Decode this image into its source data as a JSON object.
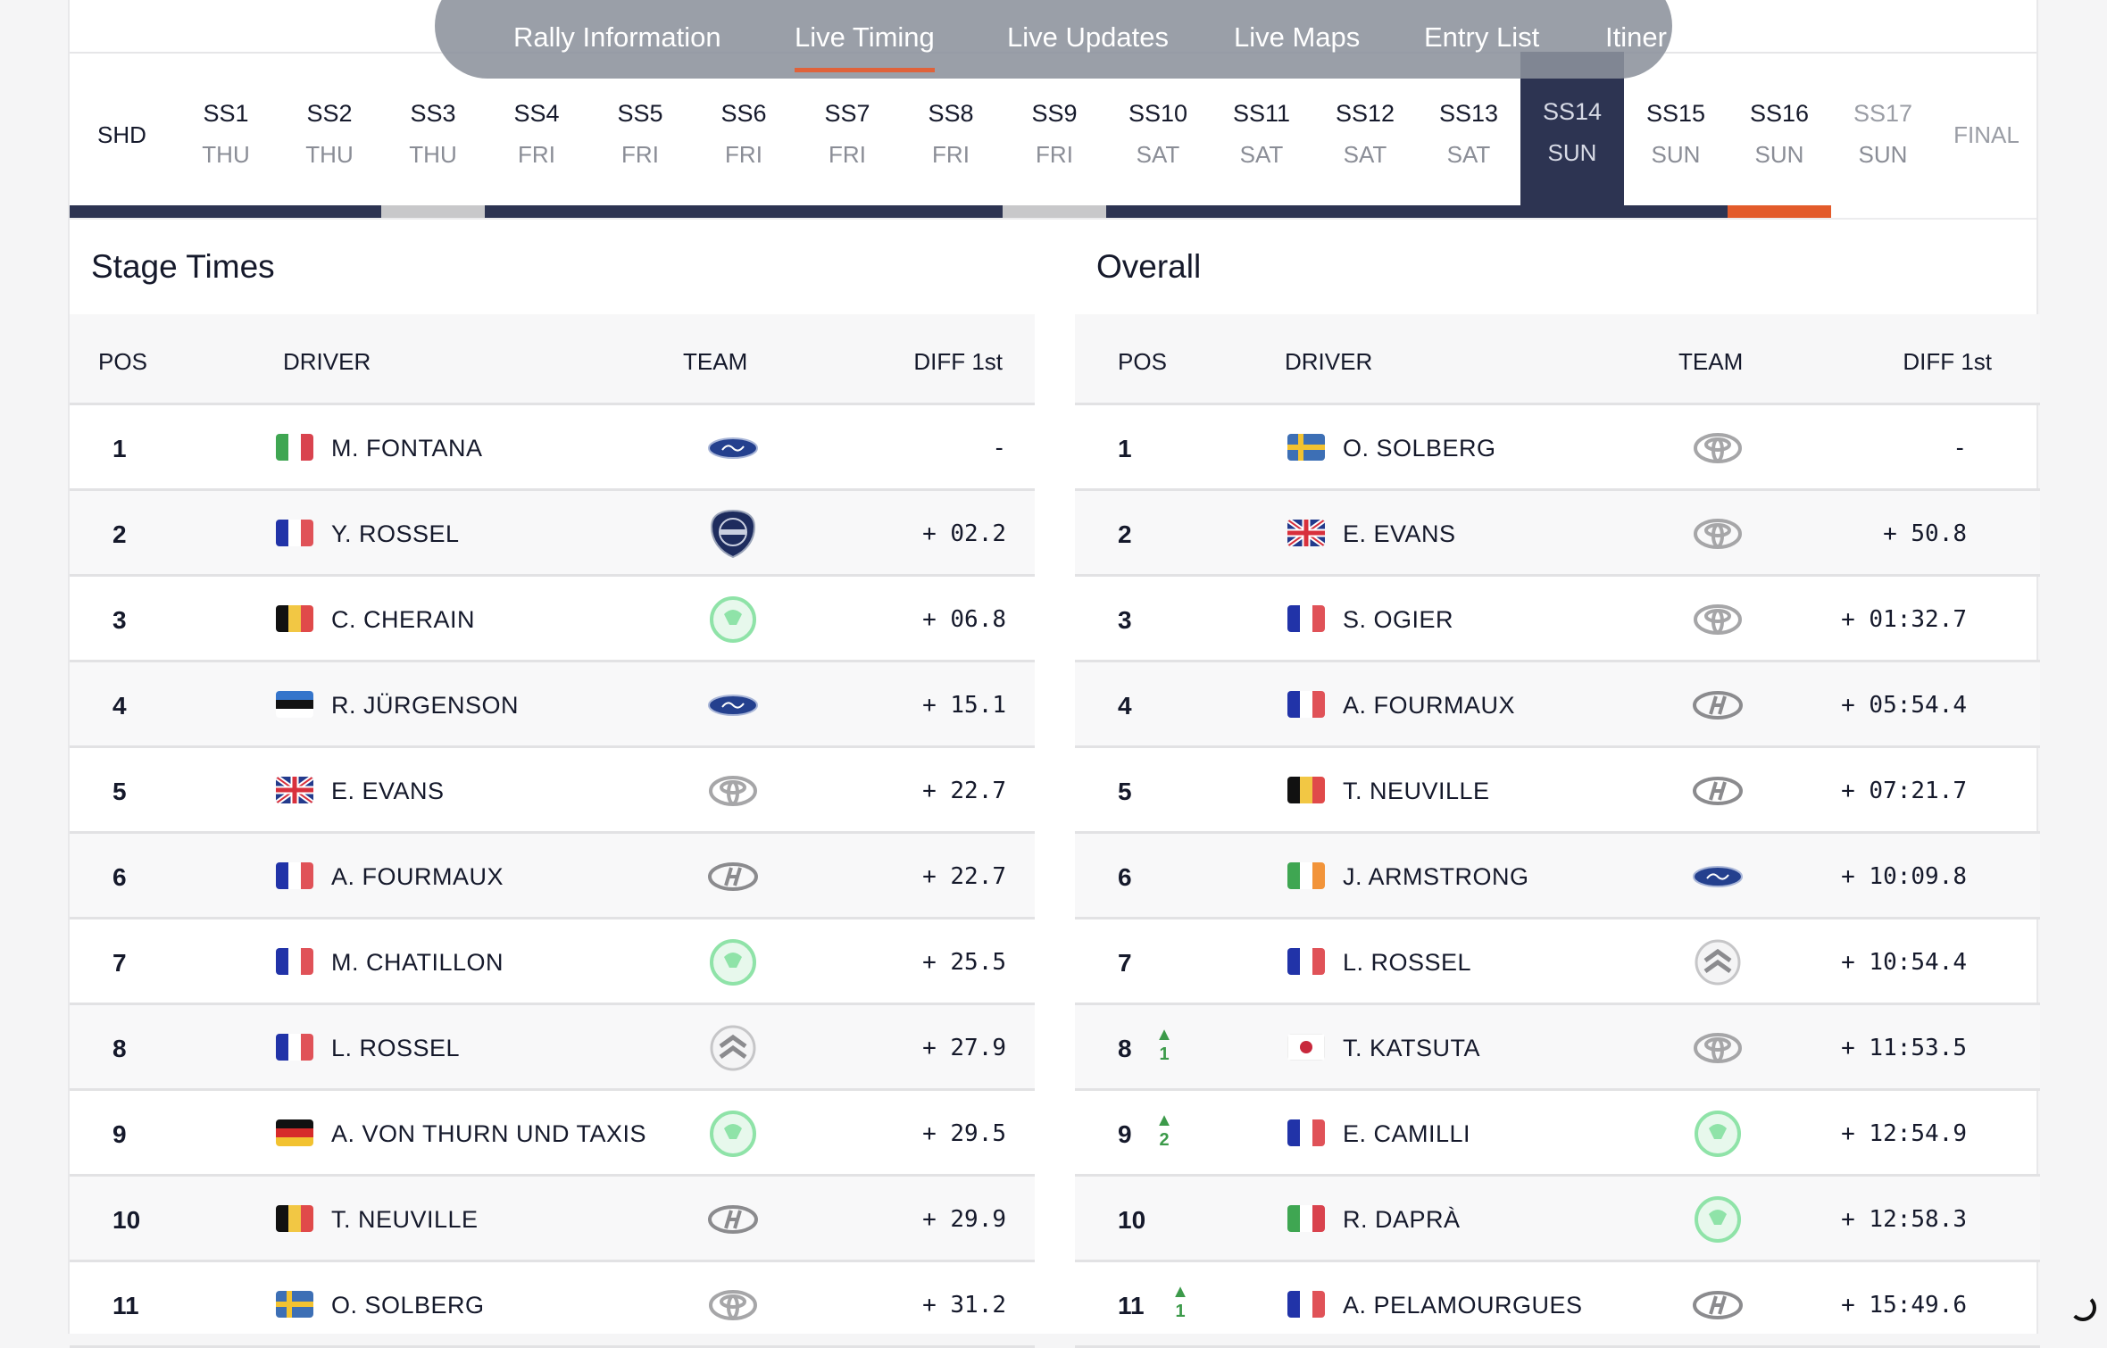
{
  "nav": {
    "items": [
      {
        "label": "Rally Information",
        "active": false
      },
      {
        "label": "Live Timing",
        "active": true
      },
      {
        "label": "Live Updates",
        "active": false
      },
      {
        "label": "Live Maps",
        "active": false
      },
      {
        "label": "Entry List",
        "active": false
      },
      {
        "label": "Itiner",
        "active": false
      }
    ]
  },
  "stages": [
    {
      "label": "SHD",
      "day": "",
      "status": "done"
    },
    {
      "label": "SS1",
      "day": "THU",
      "status": "done"
    },
    {
      "label": "SS2",
      "day": "THU",
      "status": "done"
    },
    {
      "label": "SS3",
      "day": "THU",
      "status": "cancelled"
    },
    {
      "label": "SS4",
      "day": "FRI",
      "status": "done"
    },
    {
      "label": "SS5",
      "day": "FRI",
      "status": "done"
    },
    {
      "label": "SS6",
      "day": "FRI",
      "status": "done"
    },
    {
      "label": "SS7",
      "day": "FRI",
      "status": "done"
    },
    {
      "label": "SS8",
      "day": "FRI",
      "status": "done"
    },
    {
      "label": "SS9",
      "day": "FRI",
      "status": "cancelled"
    },
    {
      "label": "SS10",
      "day": "SAT",
      "status": "done"
    },
    {
      "label": "SS11",
      "day": "SAT",
      "status": "done"
    },
    {
      "label": "SS12",
      "day": "SAT",
      "status": "done"
    },
    {
      "label": "SS13",
      "day": "SAT",
      "status": "done"
    },
    {
      "label": "SS14",
      "day": "SUN",
      "status": "done",
      "selected": true
    },
    {
      "label": "SS15",
      "day": "SUN",
      "status": "done"
    },
    {
      "label": "SS16",
      "day": "SUN",
      "status": "live"
    },
    {
      "label": "SS17",
      "day": "SUN",
      "status": "future"
    },
    {
      "label": "FINAL",
      "day": "",
      "status": "future"
    }
  ],
  "colors": {
    "done": "#2d3452",
    "cancelled": "#c8c8ca",
    "live": "#e35b2b",
    "accent": "#e0623a"
  },
  "stage_times": {
    "title": "Stage Times",
    "headers": {
      "pos": "POS",
      "driver": "DRIVER",
      "team": "TEAM",
      "diff": "DIFF 1st"
    },
    "rows": [
      {
        "pos": "1",
        "flag": "italy",
        "driver": "M. FONTANA",
        "team": "ford",
        "diff": "-"
      },
      {
        "pos": "2",
        "flag": "france",
        "driver": "Y. ROSSEL",
        "team": "lancia",
        "diff": "+ 02.2"
      },
      {
        "pos": "3",
        "flag": "belgium",
        "driver": "C. CHERAIN",
        "team": "skoda",
        "diff": "+ 06.8"
      },
      {
        "pos": "4",
        "flag": "estonia",
        "driver": "R. JÜRGENSON",
        "team": "ford",
        "diff": "+ 15.1"
      },
      {
        "pos": "5",
        "flag": "uk",
        "driver": "E. EVANS",
        "team": "toyota",
        "diff": "+ 22.7"
      },
      {
        "pos": "6",
        "flag": "france",
        "driver": "A. FOURMAUX",
        "team": "hyundai",
        "diff": "+ 22.7"
      },
      {
        "pos": "7",
        "flag": "france",
        "driver": "M. CHATILLON",
        "team": "skoda",
        "diff": "+ 25.5"
      },
      {
        "pos": "8",
        "flag": "france",
        "driver": "L. ROSSEL",
        "team": "citroen",
        "diff": "+ 27.9"
      },
      {
        "pos": "9",
        "flag": "germany",
        "driver": "A. VON THURN UND TAXIS",
        "team": "skoda",
        "diff": "+ 29.5"
      },
      {
        "pos": "10",
        "flag": "belgium",
        "driver": "T. NEUVILLE",
        "team": "hyundai",
        "diff": "+ 29.9"
      },
      {
        "pos": "11",
        "flag": "sweden",
        "driver": "O. SOLBERG",
        "team": "toyota",
        "diff": "+ 31.2"
      }
    ]
  },
  "overall": {
    "title": "Overall",
    "headers": {
      "pos": "POS",
      "driver": "DRIVER",
      "team": "TEAM",
      "diff": "DIFF 1st"
    },
    "rows": [
      {
        "pos": "1",
        "flag": "sweden",
        "driver": "O. SOLBERG",
        "team": "toyota",
        "diff": "-"
      },
      {
        "pos": "2",
        "flag": "uk",
        "driver": "E. EVANS",
        "team": "toyota",
        "diff": "+ 50.8"
      },
      {
        "pos": "3",
        "flag": "france",
        "driver": "S. OGIER",
        "team": "toyota",
        "diff": "+ 01:32.7"
      },
      {
        "pos": "4",
        "flag": "france",
        "driver": "A. FOURMAUX",
        "team": "hyundai",
        "diff": "+ 05:54.4"
      },
      {
        "pos": "5",
        "flag": "belgium",
        "driver": "T. NEUVILLE",
        "team": "hyundai",
        "diff": "+ 07:21.7"
      },
      {
        "pos": "6",
        "flag": "ireland",
        "driver": "J. ARMSTRONG",
        "team": "ford",
        "diff": "+ 10:09.8"
      },
      {
        "pos": "7",
        "flag": "france",
        "driver": "L. ROSSEL",
        "team": "citroen",
        "diff": "+ 10:54.4"
      },
      {
        "pos": "8",
        "flag": "japan",
        "driver": "T. KATSUTA",
        "team": "toyota",
        "diff": "+ 11:53.5",
        "change": "1"
      },
      {
        "pos": "9",
        "flag": "france",
        "driver": "E. CAMILLI",
        "team": "skoda",
        "diff": "+ 12:54.9",
        "change": "2"
      },
      {
        "pos": "10",
        "flag": "italy",
        "driver": "R. DAPRÀ",
        "team": "skoda",
        "diff": "+ 12:58.3"
      },
      {
        "pos": "11",
        "flag": "france",
        "driver": "A. PELAMOURGUES",
        "team": "hyundai",
        "diff": "+ 15:49.6",
        "change": "1"
      }
    ]
  }
}
